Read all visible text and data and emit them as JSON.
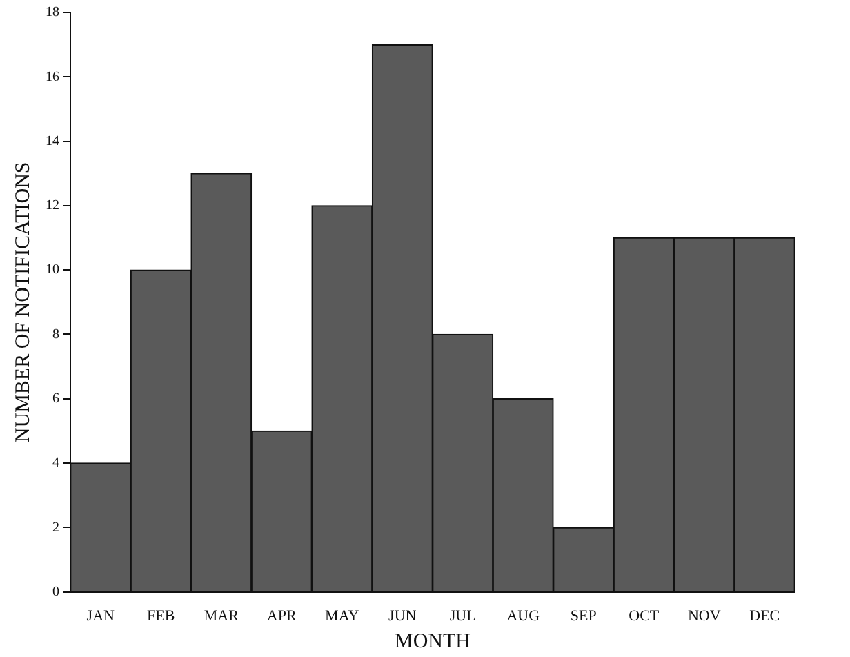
{
  "chart_data": {
    "type": "bar",
    "xlabel": "MONTH",
    "ylabel": "NUMBER OF NOTIFICATIONS",
    "categories": [
      "JAN",
      "FEB",
      "MAR",
      "APR",
      "MAY",
      "JUN",
      "JUL",
      "AUG",
      "SEP",
      "OCT",
      "NOV",
      "DEC"
    ],
    "values": [
      4,
      10,
      13,
      5,
      12,
      17,
      8,
      6,
      2,
      11,
      11,
      11
    ],
    "color": "#5a5a5a",
    "ylim": [
      0,
      18
    ],
    "yticks": [
      0,
      2,
      4,
      6,
      8,
      10,
      12,
      14,
      16,
      18
    ],
    "grid": false,
    "legend": false
  }
}
